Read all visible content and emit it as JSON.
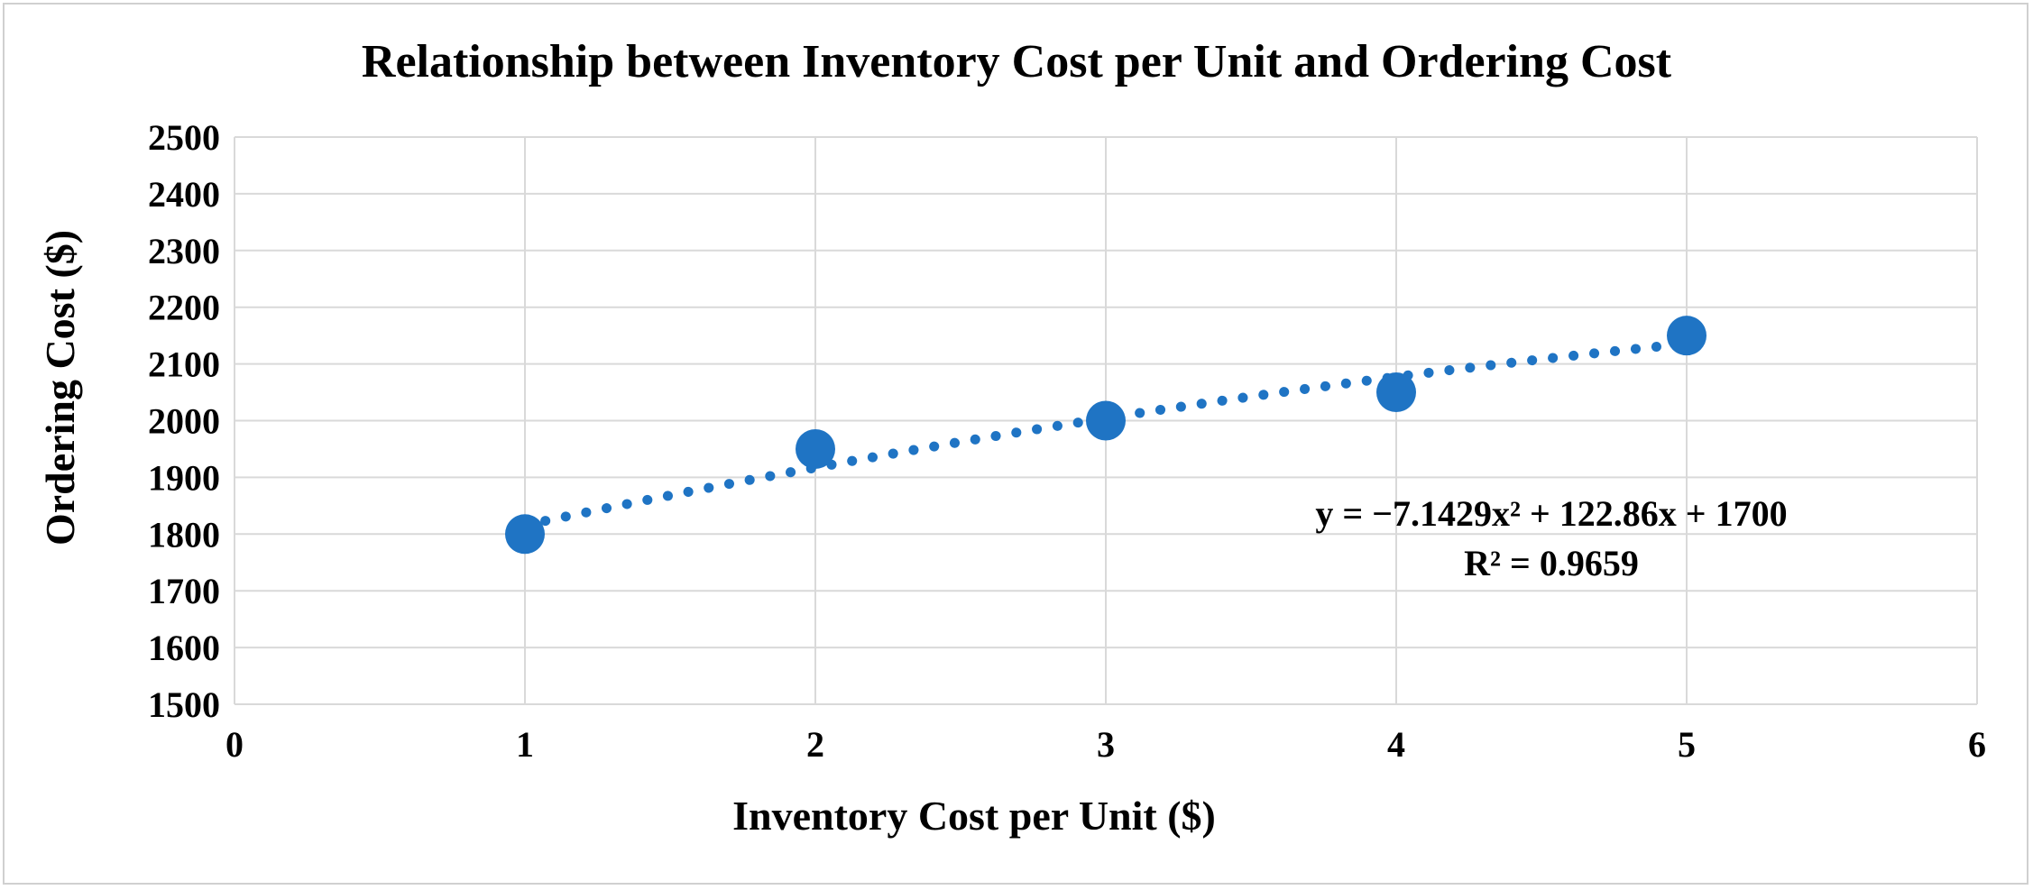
{
  "chart_data": {
    "type": "scatter",
    "title": "Relationship between Inventory Cost per Unit and Ordering Cost",
    "xlabel": "Inventory Cost per Unit ($)",
    "ylabel": "Ordering Cost ($)",
    "xlim": [
      0,
      6
    ],
    "ylim": [
      1500,
      2500
    ],
    "x_ticks": [
      0,
      1,
      2,
      3,
      4,
      5,
      6
    ],
    "y_ticks": [
      1500,
      1600,
      1700,
      1800,
      1900,
      2000,
      2100,
      2200,
      2300,
      2400,
      2500
    ],
    "grid": true,
    "series": [
      {
        "x": [
          1,
          2,
          3,
          4,
          5
        ],
        "y": [
          1800,
          1950,
          2000,
          2050,
          2150
        ],
        "color": "#1f74c4"
      }
    ],
    "trendline": {
      "type": "polynomial",
      "order": 2,
      "coefficients": {
        "a": -7.1429,
        "b": 122.86,
        "c": 1700
      },
      "x_range": [
        1,
        5
      ],
      "style": "dotted",
      "color": "#1f74c4"
    },
    "annotations": {
      "equation": "y = −7.1429x² + 122.86x + 1700",
      "r_squared": "R² = 0.9659"
    }
  }
}
